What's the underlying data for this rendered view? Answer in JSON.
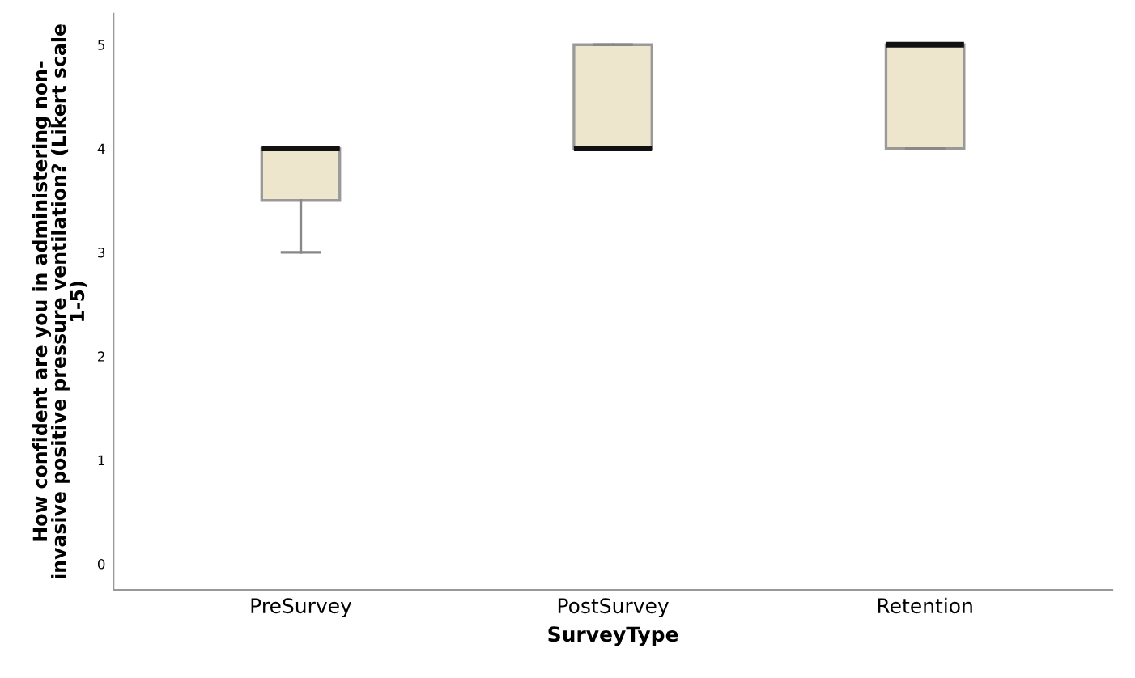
{
  "chart_data": {
    "type": "box",
    "xlabel": "SurveyType",
    "ylabel": "How confident are you in administering non-\ninvasive positive pressure ventilation? (Likert scale\n1-5)",
    "categories": [
      "PreSurvey",
      "PostSurvey",
      "Retention"
    ],
    "boxes": [
      {
        "low": 3,
        "q1": 3.5,
        "median": 4,
        "q3": 4,
        "high": 4
      },
      {
        "low": 4,
        "q1": 4,
        "median": 4,
        "q3": 5,
        "high": 5
      },
      {
        "low": 4,
        "q1": 4,
        "median": 5,
        "q3": 5,
        "high": 5
      }
    ],
    "color": "#ede5cc",
    "ylim": [
      -0.25,
      5.3
    ],
    "yticks": [
      0,
      1,
      2,
      3,
      4,
      5
    ],
    "grid": false
  }
}
